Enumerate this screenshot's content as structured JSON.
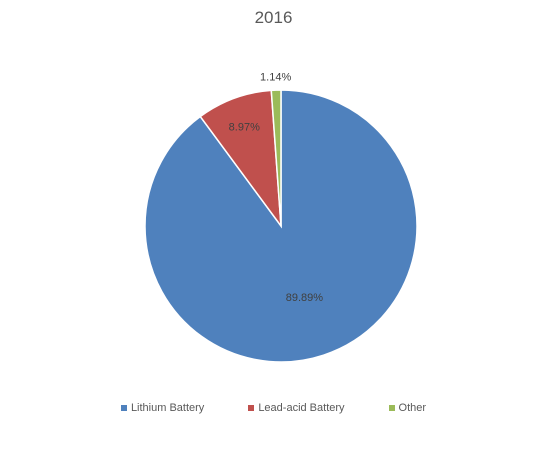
{
  "chart_data": {
    "type": "pie",
    "title": "2016",
    "categories": [
      "Lithium Battery",
      "Lead-acid Battery",
      "Other"
    ],
    "values": [
      89.89,
      8.97,
      1.14
    ],
    "data_labels": [
      "89.89%",
      "8.97%",
      "1.14%"
    ],
    "colors": [
      "#4f81bd",
      "#c0504d",
      "#9bbb59"
    ],
    "start_angle_deg": 0,
    "direction": "clockwise",
    "legend_position": "bottom"
  }
}
